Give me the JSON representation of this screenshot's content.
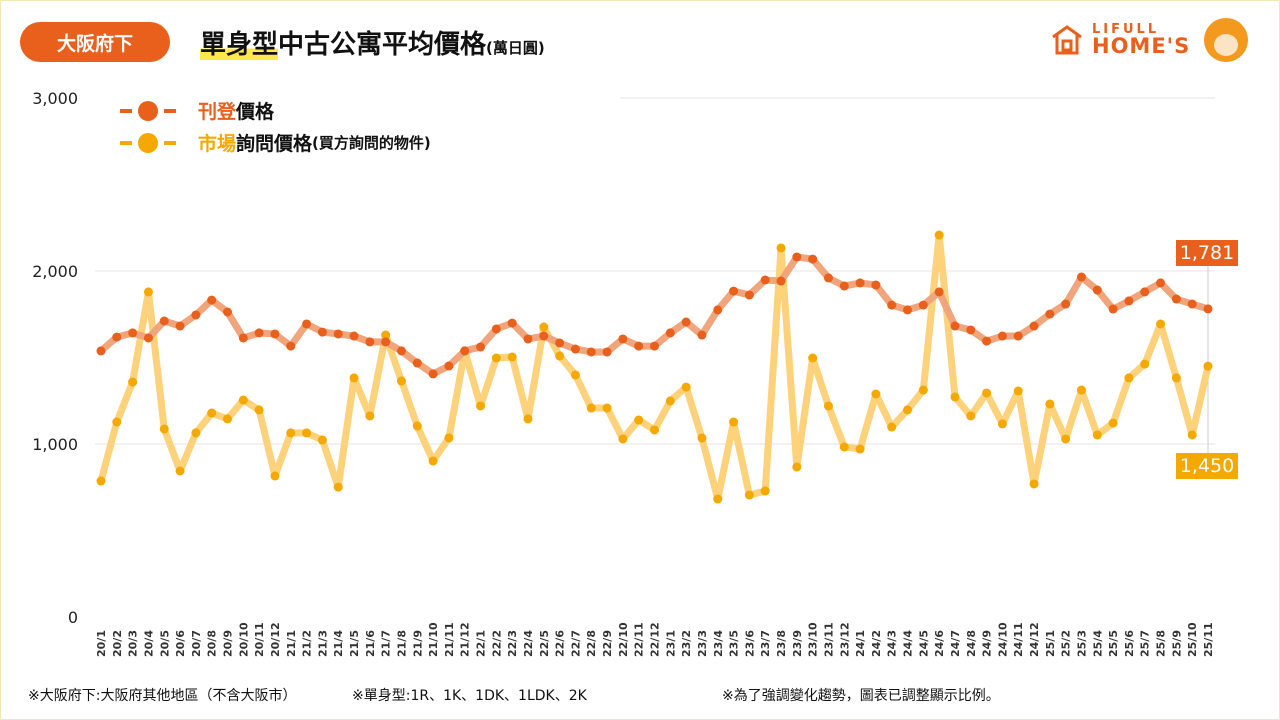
{
  "region_badge": "大阪府下",
  "title": {
    "highlight": "單身型",
    "rest": "中古公寓平均價格",
    "unit": "(萬日圓)"
  },
  "logo": {
    "line1": "LIFULL",
    "line2": "HOME'S"
  },
  "footnotes": [
    "※大阪府下:大阪府其他地區（不含大阪市）",
    "※單身型:1R、1K、1DK、1LDK、2K",
    "※為了強調變化趨勢，圖表已調整顯示比例。"
  ],
  "colors": {
    "listed": "#e8601c",
    "listed_line": "#f0a57c",
    "inquiry": "#f5a800",
    "inquiry_line": "#fdd27a"
  },
  "chart_data": {
    "type": "line",
    "title": "單身型中古公寓平均價格(萬日圓)",
    "ylim": [
      0,
      3000
    ],
    "yticks": [
      0,
      1000,
      2000,
      3000
    ],
    "ytick_labels": [
      "0",
      "1,000",
      "2,000",
      "3,000"
    ],
    "legend": [
      {
        "accent": "刊登",
        "rest": "價格",
        "note": ""
      },
      {
        "accent": "市場",
        "rest": "詢問價格",
        "note": "(買方詢問的物件)"
      }
    ],
    "legend_position": "top-left",
    "x": [
      "20/1",
      "20/2",
      "20/3",
      "20/4",
      "20/5",
      "20/6",
      "20/7",
      "20/8",
      "20/9",
      "20/10",
      "20/11",
      "20/12",
      "21/1",
      "21/2",
      "21/3",
      "21/4",
      "21/5",
      "21/6",
      "21/7",
      "21/8",
      "21/9",
      "21/10",
      "21/11",
      "21/12",
      "22/1",
      "22/2",
      "22/3",
      "22/4",
      "22/5",
      "22/6",
      "22/7",
      "22/8",
      "22/9",
      "22/10",
      "22/11",
      "22/12",
      "23/1",
      "23/2",
      "23/3",
      "23/4",
      "23/5",
      "23/6",
      "23/7",
      "23/8",
      "23/9",
      "23/10",
      "23/11",
      "23/12",
      "24/1",
      "24/2",
      "24/3",
      "24/4",
      "24/5",
      "24/6",
      "24/7",
      "24/8",
      "24/9",
      "24/10",
      "24/11",
      "24/12",
      "25/1",
      "25/2",
      "25/3",
      "25/4",
      "25/5",
      "25/6",
      "25/7",
      "25/8",
      "25/9",
      "25/10",
      "25/11"
    ],
    "series": [
      {
        "name": "刊登價格",
        "end_label": "1,781",
        "values": [
          1538,
          1618,
          1642,
          1613,
          1711,
          1682,
          1746,
          1832,
          1763,
          1613,
          1642,
          1636,
          1566,
          1694,
          1647,
          1636,
          1624,
          1590,
          1590,
          1538,
          1468,
          1405,
          1451,
          1538,
          1561,
          1665,
          1699,
          1607,
          1624,
          1584,
          1549,
          1532,
          1532,
          1607,
          1566,
          1566,
          1642,
          1705,
          1630,
          1775,
          1884,
          1861,
          1948,
          1942,
          2081,
          2069,
          1960,
          1913,
          1931,
          1919,
          1803,
          1775,
          1803,
          1879,
          1682,
          1659,
          1595,
          1624,
          1624,
          1682,
          1751,
          1809,
          1965,
          1890,
          1780,
          1827,
          1879,
          1931,
          1838,
          1809,
          1781
        ]
      },
      {
        "name": "市場詢問價格",
        "end_label": "1,450",
        "values": [
          786,
          1127,
          1358,
          1879,
          1087,
          844,
          1064,
          1179,
          1145,
          1254,
          1197,
          815,
          1064,
          1064,
          1023,
          751,
          1382,
          1162,
          1630,
          1364,
          1104,
          902,
          1035,
          1538,
          1220,
          1497,
          1503,
          1145,
          1676,
          1509,
          1399,
          1208,
          1208,
          1029,
          1139,
          1081,
          1249,
          1329,
          1035,
          682,
          1127,
          705,
          728,
          2133,
          867,
          1497,
          1220,
          983,
          971,
          1289,
          1098,
          1197,
          1312,
          2208,
          1272,
          1162,
          1295,
          1116,
          1306,
          769,
          1231,
          1029,
          1312,
          1052,
          1121,
          1382,
          1462,
          1694,
          1382,
          1052,
          1450
        ]
      }
    ]
  }
}
